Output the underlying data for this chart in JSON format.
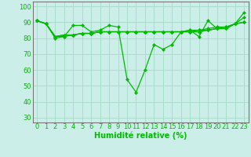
{
  "series_main": [
    91,
    89,
    81,
    81,
    88,
    88,
    84,
    85,
    88,
    87,
    54,
    46,
    60,
    76,
    73,
    76,
    84,
    85,
    81,
    91,
    86,
    86,
    89,
    96
  ],
  "series_flat": [
    [
      91,
      89,
      81,
      82,
      82,
      83,
      83,
      84,
      84,
      84,
      84,
      84,
      84,
      84,
      84,
      84,
      84,
      84,
      85,
      85,
      86,
      87,
      89,
      93
    ],
    [
      91,
      89,
      81,
      82,
      82,
      83,
      83,
      84,
      84,
      84,
      84,
      84,
      84,
      84,
      84,
      84,
      84,
      85,
      85,
      86,
      87,
      87,
      89,
      90
    ],
    [
      91,
      89,
      80,
      81,
      82,
      83,
      83,
      84,
      84,
      84,
      84,
      84,
      84,
      84,
      84,
      84,
      84,
      84,
      84,
      85,
      86,
      86,
      89,
      90
    ]
  ],
  "line_color": "#00bb00",
  "marker": "D",
  "marker_size": 2.2,
  "background_color": "#cceee8",
  "grid_color": "#aaddcc",
  "yticks": [
    30,
    40,
    50,
    60,
    70,
    80,
    90,
    100
  ],
  "xlabel": "Humidité relative (%)",
  "ylim": [
    27,
    103
  ],
  "xlim": [
    -0.5,
    23.5
  ],
  "xlabel_fontsize": 7,
  "tick_fontsize": 6,
  "line_width": 0.9
}
